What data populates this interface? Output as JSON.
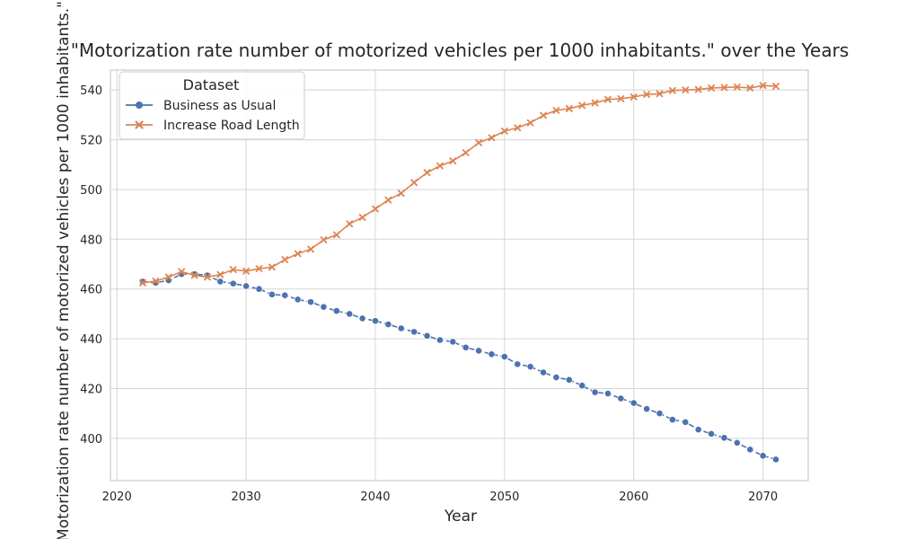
{
  "chart_data": {
    "type": "line",
    "title": "\"Motorization rate number of motorized vehicles per 1000 inhabitants.\" over the Years",
    "xlabel": "Year",
    "ylabel": "Motorization rate number of motorized vehicles per 1000 inhabitants.\"",
    "xlim": [
      2019.5,
      2073.5
    ],
    "ylim": [
      383,
      548
    ],
    "xticks": [
      2020,
      2030,
      2040,
      2050,
      2060,
      2070
    ],
    "yticks": [
      400,
      420,
      440,
      460,
      480,
      500,
      520,
      540
    ],
    "grid": true,
    "legend": {
      "title": "Dataset",
      "position": "top-left"
    },
    "x": [
      2022,
      2023,
      2024,
      2025,
      2026,
      2027,
      2028,
      2029,
      2030,
      2031,
      2032,
      2033,
      2034,
      2035,
      2036,
      2037,
      2038,
      2039,
      2040,
      2041,
      2042,
      2043,
      2044,
      2045,
      2046,
      2047,
      2048,
      2049,
      2050,
      2051,
      2052,
      2053,
      2054,
      2055,
      2056,
      2057,
      2058,
      2059,
      2060,
      2061,
      2062,
      2063,
      2064,
      2065,
      2066,
      2067,
      2068,
      2069,
      2070,
      2071
    ],
    "series": [
      {
        "name": "Business as Usual",
        "color": "#4c72b0",
        "marker": "circle",
        "linestyle": "dashed",
        "values": [
          463.0,
          462.5,
          463.5,
          466.0,
          466.0,
          465.5,
          463.0,
          462.2,
          461.2,
          460.0,
          457.8,
          457.5,
          455.8,
          454.8,
          452.8,
          451.2,
          450.0,
          448.2,
          447.2,
          445.8,
          444.2,
          442.8,
          441.2,
          439.5,
          438.8,
          436.5,
          435.2,
          433.8,
          432.8,
          429.8,
          428.8,
          426.5,
          424.5,
          423.5,
          421.2,
          418.5,
          418.0,
          416.0,
          414.2,
          411.8,
          410.0,
          407.5,
          406.5,
          403.5,
          401.8,
          400.2,
          398.2,
          395.5,
          393.0,
          391.5
        ]
      },
      {
        "name": "Increase Road Length",
        "color": "#dd8452",
        "marker": "x",
        "linestyle": "solid",
        "values": [
          462.5,
          463.2,
          464.8,
          467.0,
          465.5,
          464.8,
          465.8,
          467.8,
          467.2,
          468.2,
          468.8,
          471.8,
          474.2,
          476.0,
          479.8,
          481.8,
          486.2,
          488.8,
          492.2,
          495.8,
          498.5,
          502.8,
          506.8,
          509.5,
          511.5,
          514.8,
          518.8,
          520.8,
          523.5,
          524.8,
          526.8,
          529.8,
          531.8,
          532.5,
          533.8,
          534.8,
          536.2,
          536.5,
          537.2,
          538.2,
          538.5,
          539.8,
          540.0,
          540.2,
          540.8,
          541.0,
          541.2,
          540.8,
          541.8,
          541.5
        ]
      }
    ]
  }
}
